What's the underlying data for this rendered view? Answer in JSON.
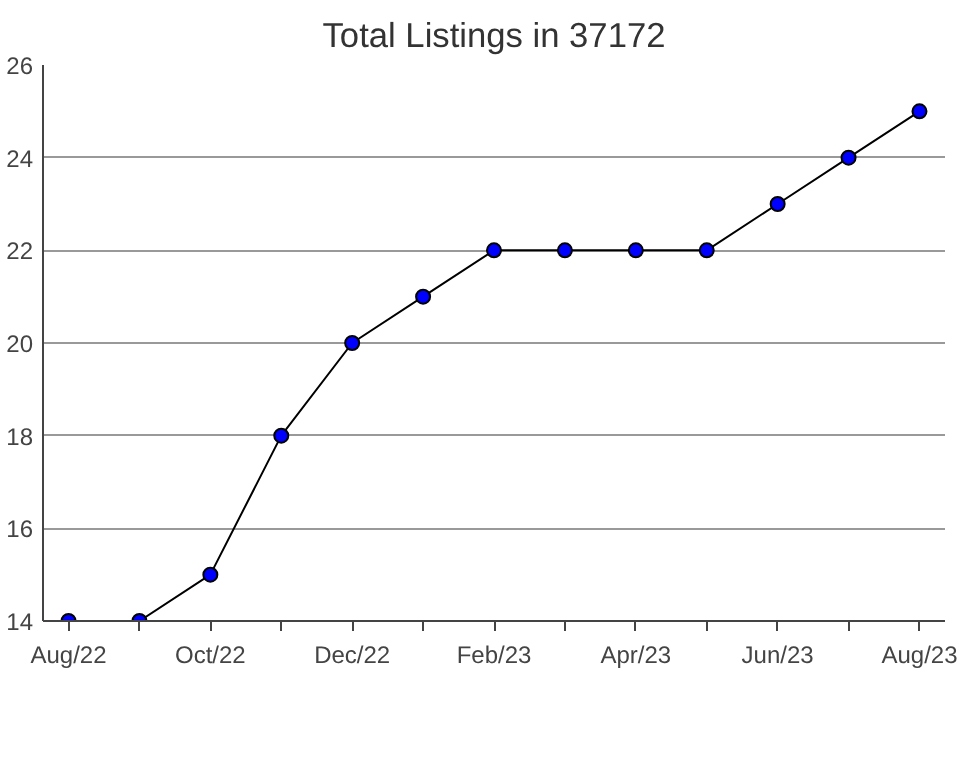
{
  "chart_data": {
    "type": "line",
    "title": "Total Listings in 37172",
    "categories": [
      "Aug/22",
      null,
      "Oct/22",
      null,
      "Dec/22",
      null,
      "Feb/23",
      null,
      "Apr/23",
      null,
      "Jun/23",
      null,
      "Aug/23"
    ],
    "series": [
      {
        "color": "#0000ff",
        "values": [
          14,
          14,
          15,
          18,
          20,
          21,
          22,
          22,
          22,
          22,
          23,
          24,
          25
        ]
      }
    ],
    "ylim": [
      14,
      26
    ],
    "yticks": [
      14,
      16,
      18,
      20,
      22,
      24,
      26
    ],
    "grid": "y",
    "marker": "circle",
    "line_style": "solid"
  }
}
